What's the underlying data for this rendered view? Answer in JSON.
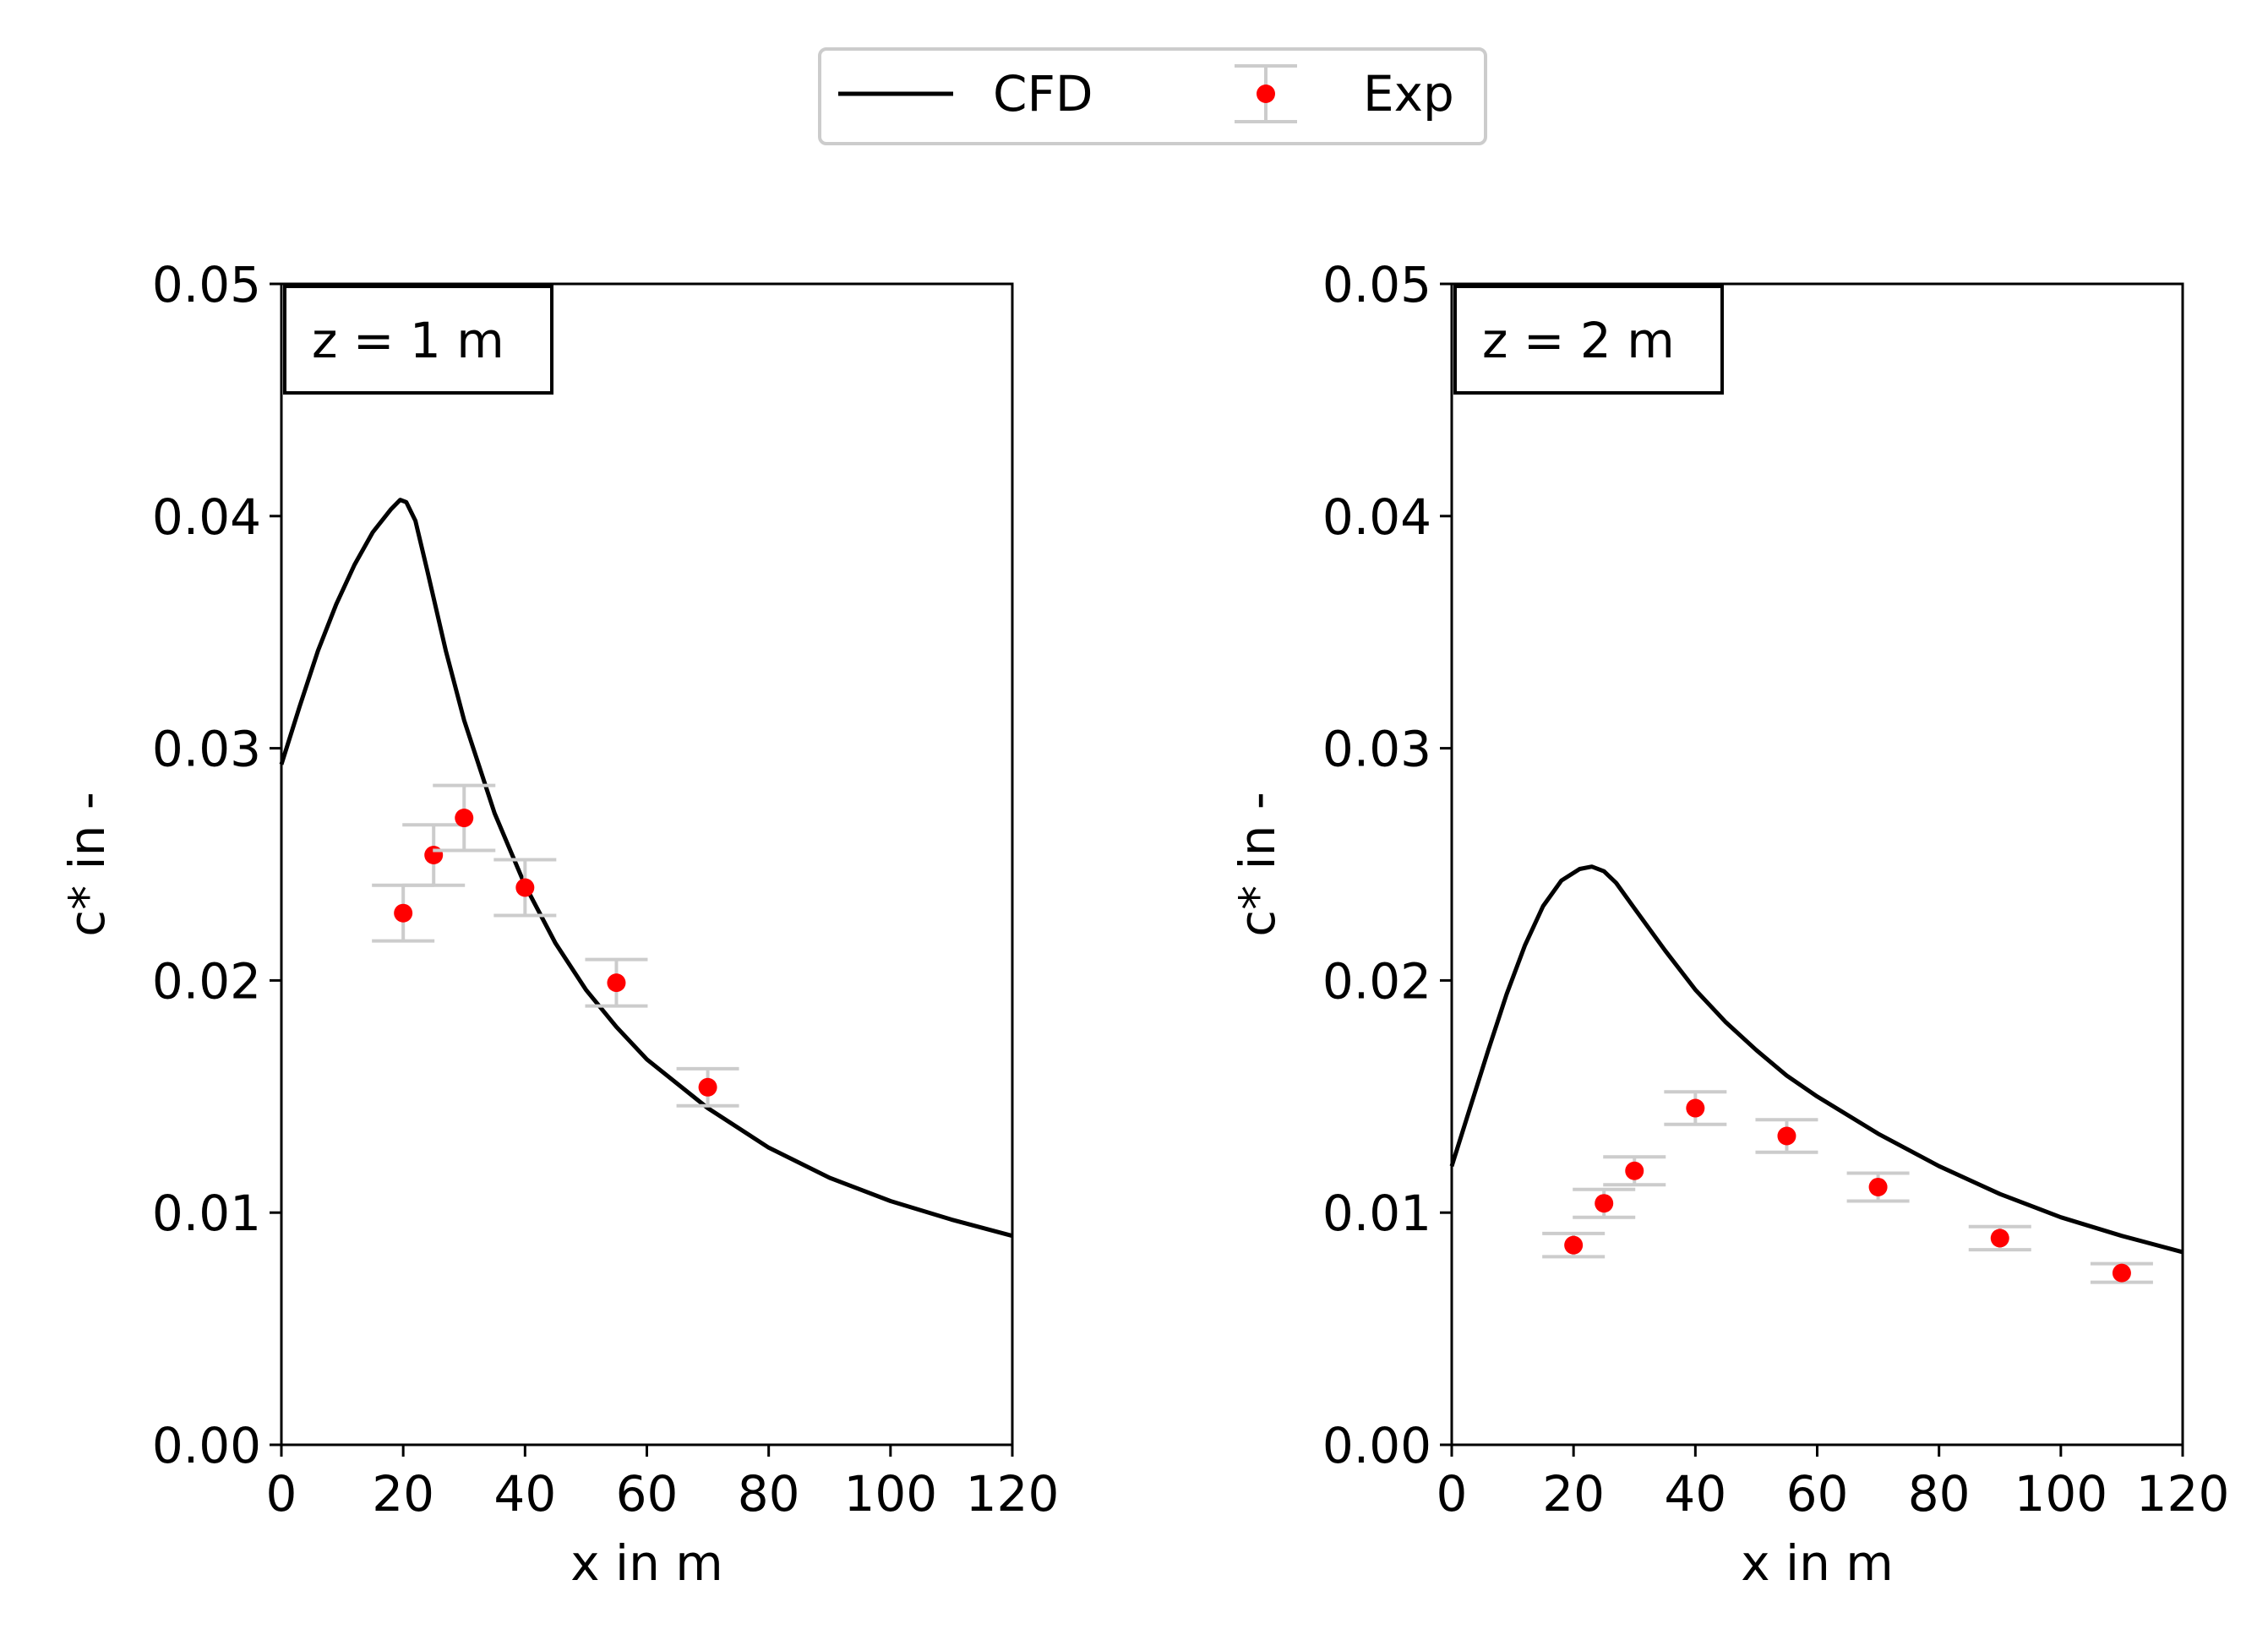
{
  "legend": {
    "cfd_label": "CFD",
    "exp_label": "Exp"
  },
  "colors": {
    "cfd_line": "#000000",
    "exp_marker": "#ff0000",
    "error_bar": "#cccccc"
  },
  "chart_data": [
    {
      "type": "line",
      "panel_label": "z = 1 m",
      "xlabel": "x in m",
      "ylabel": "c* in -",
      "xlim": [
        0,
        120
      ],
      "ylim": [
        0,
        0.05
      ],
      "xticks": [
        0,
        20,
        40,
        60,
        80,
        100,
        120
      ],
      "yticks": [
        0.0,
        0.01,
        0.02,
        0.03,
        0.04,
        0.05
      ],
      "xtick_labels": [
        "0",
        "20",
        "40",
        "60",
        "80",
        "100",
        "120"
      ],
      "ytick_labels": [
        "0.00",
        "0.01",
        "0.02",
        "0.03",
        "0.04",
        "0.05"
      ],
      "series": [
        {
          "name": "CFD",
          "kind": "line",
          "x": [
            0,
            3,
            6,
            9,
            12,
            15,
            18,
            19.5,
            20.5,
            22,
            24,
            27,
            30,
            35,
            40,
            45,
            50,
            55,
            60,
            70,
            80,
            90,
            100,
            110,
            120
          ],
          "y": [
            0.0293,
            0.0318,
            0.0342,
            0.0362,
            0.0379,
            0.0393,
            0.0403,
            0.0407,
            0.0406,
            0.0398,
            0.0376,
            0.0342,
            0.0312,
            0.0272,
            0.0241,
            0.0216,
            0.0196,
            0.018,
            0.0166,
            0.0145,
            0.0128,
            0.0115,
            0.0105,
            0.0097,
            0.009
          ]
        },
        {
          "name": "Exp",
          "kind": "errorbar",
          "x": [
            20,
            25,
            30,
            40,
            55,
            70
          ],
          "y": [
            0.0229,
            0.0254,
            0.027,
            0.024,
            0.0199,
            0.0154
          ],
          "yerr": [
            0.0012,
            0.0013,
            0.0014,
            0.0012,
            0.001,
            0.0008
          ]
        }
      ]
    },
    {
      "type": "line",
      "panel_label": "z = 2 m",
      "xlabel": "x in m",
      "ylabel": "c* in -",
      "xlim": [
        0,
        120
      ],
      "ylim": [
        0,
        0.05
      ],
      "xticks": [
        0,
        20,
        40,
        60,
        80,
        100,
        120
      ],
      "yticks": [
        0.0,
        0.01,
        0.02,
        0.03,
        0.04,
        0.05
      ],
      "xtick_labels": [
        "0",
        "20",
        "40",
        "60",
        "80",
        "100",
        "120"
      ],
      "ytick_labels": [
        "0.00",
        "0.01",
        "0.02",
        "0.03",
        "0.04",
        "0.05"
      ],
      "series": [
        {
          "name": "CFD",
          "kind": "line",
          "x": [
            0,
            3,
            6,
            9,
            12,
            15,
            18,
            21,
            23,
            25,
            27,
            30,
            35,
            40,
            45,
            50,
            55,
            60,
            70,
            80,
            90,
            100,
            110,
            120
          ],
          "y": [
            0.012,
            0.0145,
            0.017,
            0.0194,
            0.0215,
            0.0232,
            0.0243,
            0.0248,
            0.0249,
            0.0247,
            0.0242,
            0.0231,
            0.0213,
            0.0196,
            0.0182,
            0.017,
            0.0159,
            0.015,
            0.0134,
            0.012,
            0.0108,
            0.0098,
            0.009,
            0.0083
          ]
        },
        {
          "name": "Exp",
          "kind": "errorbar",
          "x": [
            20,
            25,
            30,
            40,
            55,
            70,
            90,
            110
          ],
          "y": [
            0.0086,
            0.0104,
            0.0118,
            0.0145,
            0.0133,
            0.0111,
            0.0089,
            0.0074
          ],
          "yerr": [
            0.0005,
            0.0006,
            0.0006,
            0.0007,
            0.0007,
            0.0006,
            0.0005,
            0.0004
          ]
        }
      ]
    }
  ]
}
